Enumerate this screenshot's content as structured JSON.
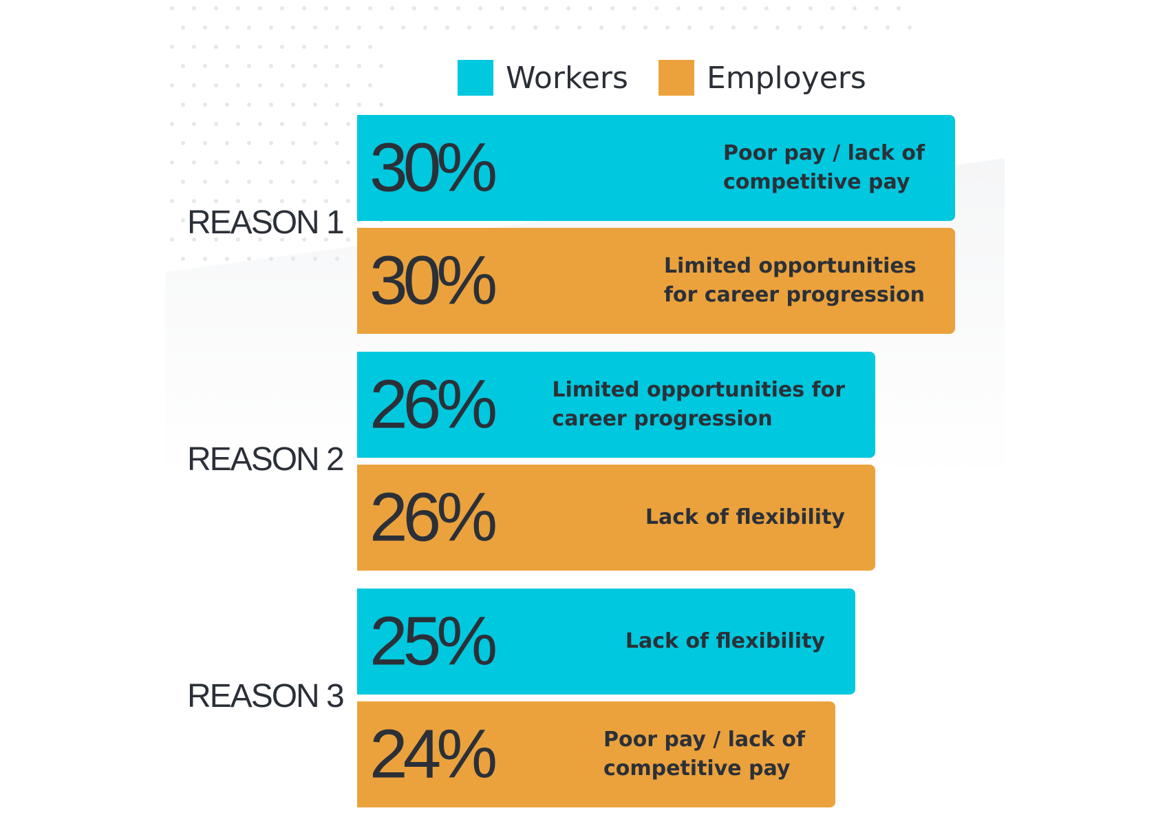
{
  "colors": {
    "workers": "#00C8DE",
    "employers": "#EBA23C"
  },
  "legend": [
    {
      "label": "Workers",
      "color_key": "workers"
    },
    {
      "label": "Employers",
      "color_key": "employers"
    }
  ],
  "chart_data": {
    "type": "bar",
    "orientation": "horizontal",
    "groups": [
      {
        "label": "REASON 1",
        "bars": [
          {
            "series": "Workers",
            "value": 30,
            "value_label": "30%",
            "label": "Poor pay / lack of\ncompetitive pay"
          },
          {
            "series": "Employers",
            "value": 30,
            "value_label": "30%",
            "label": "Limited opportunities\nfor career progression"
          }
        ]
      },
      {
        "label": "REASON 2",
        "bars": [
          {
            "series": "Workers",
            "value": 26,
            "value_label": "26%",
            "label": "Limited opportunities for\ncareer progression"
          },
          {
            "series": "Employers",
            "value": 26,
            "value_label": "26%",
            "label": "Lack of flexibility"
          }
        ]
      },
      {
        "label": "REASON 3",
        "bars": [
          {
            "series": "Workers",
            "value": 25,
            "value_label": "25%",
            "label": "Lack of flexibility"
          },
          {
            "series": "Employers",
            "value": 24,
            "value_label": "24%",
            "label": "Poor pay / lack of\ncompetitive pay"
          }
        ]
      }
    ],
    "legend_position": "top"
  }
}
